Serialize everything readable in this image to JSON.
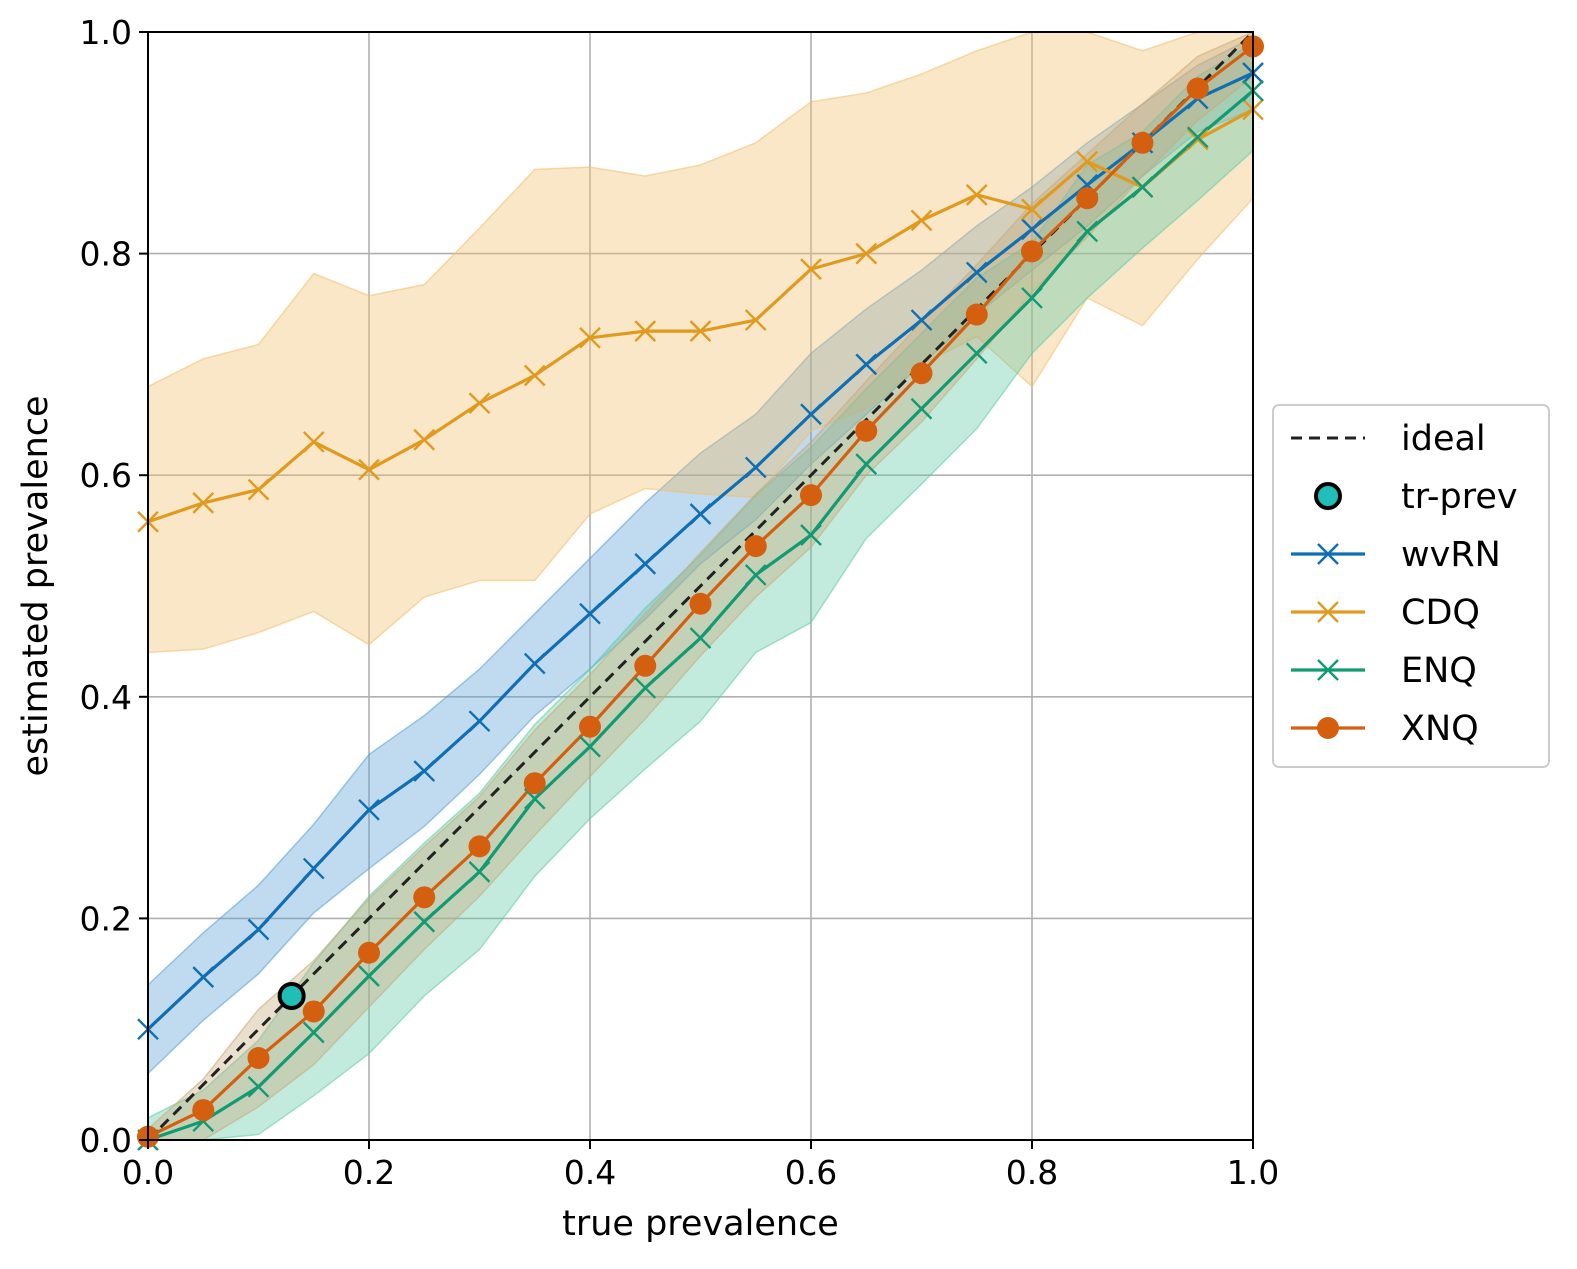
{
  "chart_data": {
    "type": "line",
    "title": "",
    "xlabel": "true prevalence",
    "ylabel": "estimated prevalence",
    "xlim": [
      0.0,
      1.0
    ],
    "ylim": [
      0.0,
      1.0
    ],
    "grid": true,
    "legend_position": "outside-right",
    "x_ticks": [
      "0.0",
      "0.2",
      "0.4",
      "0.6",
      "0.8",
      "1.0"
    ],
    "y_ticks": [
      "0.0",
      "0.2",
      "0.4",
      "0.6",
      "0.8",
      "1.0"
    ],
    "x": [
      0.0,
      0.05,
      0.1,
      0.15,
      0.2,
      0.25,
      0.3,
      0.35,
      0.4,
      0.45,
      0.5,
      0.55,
      0.6,
      0.65,
      0.7,
      0.75,
      0.8,
      0.85,
      0.9,
      0.95,
      1.0
    ],
    "ideal": {
      "name": "ideal",
      "color": "#222222"
    },
    "tr_prev": {
      "name": "tr-prev",
      "x": 0.13,
      "y": 0.13,
      "color": "#1fbfb8"
    },
    "series": [
      {
        "name": "wvRN",
        "color": "#0f6fb2",
        "band_color": "#5a9fd4",
        "marker": "x",
        "values": [
          0.1,
          0.147,
          0.19,
          0.245,
          0.298,
          0.333,
          0.378,
          0.43,
          0.475,
          0.52,
          0.565,
          0.607,
          0.655,
          0.7,
          0.74,
          0.783,
          0.822,
          0.862,
          0.9,
          0.94,
          0.963
        ],
        "lower": [
          0.06,
          0.108,
          0.15,
          0.205,
          0.245,
          0.283,
          0.33,
          0.383,
          0.425,
          0.47,
          0.52,
          0.56,
          0.61,
          0.655,
          0.7,
          0.745,
          0.785,
          0.825,
          0.87,
          0.91,
          0.93
        ],
        "upper": [
          0.14,
          0.187,
          0.23,
          0.285,
          0.348,
          0.383,
          0.425,
          0.475,
          0.525,
          0.575,
          0.62,
          0.655,
          0.71,
          0.75,
          0.785,
          0.825,
          0.86,
          0.9,
          0.935,
          0.97,
          0.995
        ]
      },
      {
        "name": "CDQ",
        "color": "#e09a1f",
        "band_color": "#f0c06b",
        "marker": "x",
        "values": [
          0.558,
          0.575,
          0.587,
          0.63,
          0.605,
          0.632,
          0.665,
          0.69,
          0.724,
          0.73,
          0.73,
          0.74,
          0.786,
          0.8,
          0.83,
          0.853,
          0.84,
          0.883,
          0.86,
          0.903,
          0.93
        ],
        "lower": [
          0.44,
          0.443,
          0.458,
          0.477,
          0.447,
          0.49,
          0.505,
          0.505,
          0.565,
          0.588,
          0.583,
          0.58,
          0.64,
          0.66,
          0.7,
          0.725,
          0.68,
          0.76,
          0.735,
          0.795,
          0.85
        ],
        "upper": [
          0.68,
          0.705,
          0.718,
          0.782,
          0.762,
          0.772,
          0.823,
          0.876,
          0.878,
          0.87,
          0.88,
          0.9,
          0.937,
          0.945,
          0.962,
          0.983,
          1.0,
          1.0,
          0.983,
          1.0,
          1.0
        ]
      },
      {
        "name": "ENQ",
        "color": "#129a73",
        "band_color": "#5fcaa9",
        "marker": "x",
        "values": [
          0.0,
          0.017,
          0.048,
          0.097,
          0.148,
          0.197,
          0.242,
          0.308,
          0.355,
          0.408,
          0.453,
          0.51,
          0.546,
          0.61,
          0.66,
          0.71,
          0.76,
          0.82,
          0.86,
          0.905,
          0.947
        ],
        "lower": [
          0.0,
          0.0,
          0.005,
          0.04,
          0.078,
          0.13,
          0.172,
          0.238,
          0.29,
          0.335,
          0.378,
          0.44,
          0.467,
          0.543,
          0.592,
          0.642,
          0.71,
          0.76,
          0.805,
          0.848,
          0.893
        ],
        "upper": [
          0.02,
          0.045,
          0.09,
          0.16,
          0.22,
          0.268,
          0.313,
          0.375,
          0.425,
          0.48,
          0.528,
          0.582,
          0.625,
          0.678,
          0.728,
          0.778,
          0.81,
          0.88,
          0.91,
          0.96,
          0.99
        ]
      },
      {
        "name": "XNQ",
        "color": "#d45f0f",
        "band_color": "#c7a97a",
        "marker": "o",
        "values": [
          0.003,
          0.027,
          0.074,
          0.116,
          0.169,
          0.219,
          0.265,
          0.322,
          0.373,
          0.428,
          0.484,
          0.536,
          0.582,
          0.64,
          0.692,
          0.745,
          0.802,
          0.85,
          0.9,
          0.949,
          0.987
        ],
        "lower": [
          0.0,
          0.0,
          0.03,
          0.068,
          0.12,
          0.172,
          0.22,
          0.275,
          0.328,
          0.38,
          0.437,
          0.49,
          0.535,
          0.6,
          0.648,
          0.705,
          0.765,
          0.815,
          0.87,
          0.92,
          0.96
        ],
        "upper": [
          0.01,
          0.055,
          0.118,
          0.162,
          0.218,
          0.265,
          0.31,
          0.37,
          0.42,
          0.475,
          0.53,
          0.583,
          0.63,
          0.685,
          0.738,
          0.79,
          0.845,
          0.89,
          0.935,
          0.978,
          1.0
        ]
      }
    ]
  }
}
